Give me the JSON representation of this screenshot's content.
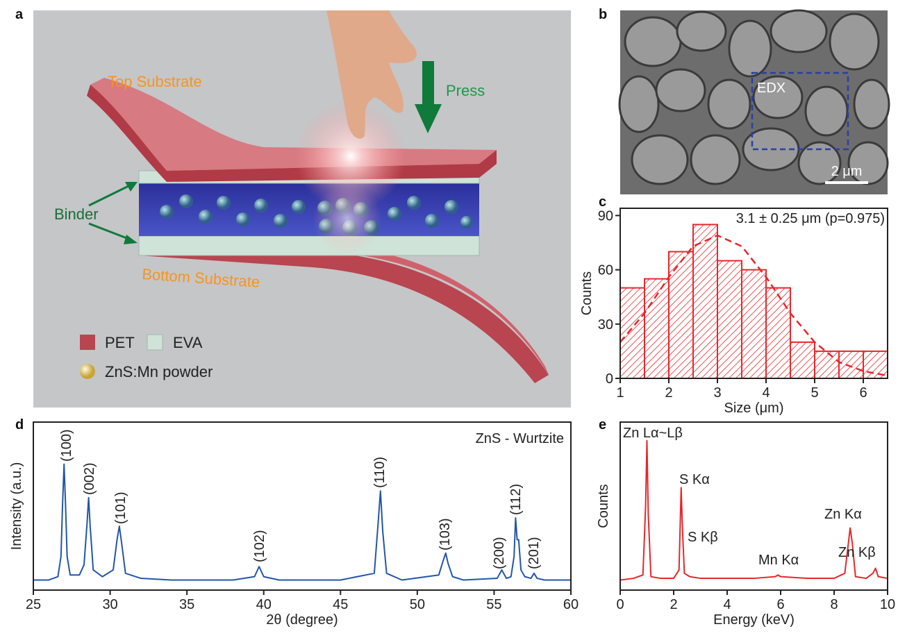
{
  "panel_labels": [
    "a",
    "b",
    "c",
    "d",
    "e"
  ],
  "illustration": {
    "top_substrate": "Top Substrate",
    "press": "Press",
    "binder": "Binder",
    "bottom_substrate": "Bottom Substrate",
    "legend": [
      "PET",
      "EVA",
      "ZnS:Mn powder"
    ]
  },
  "sem": {
    "box_label": "EDX",
    "scale_bar": "2 μm"
  },
  "chart_data": [
    {
      "type": "histogram",
      "annotation": "3.1 ± 0.25 μm (p=0.975)",
      "x_label": "Size (μm)",
      "y_label": "Counts",
      "bins": [
        1,
        1.5,
        2,
        2.5,
        3,
        3.5,
        4,
        4.5,
        5,
        5.5,
        6,
        6.5
      ],
      "counts": [
        50,
        55,
        70,
        85,
        65,
        60,
        50,
        20,
        15,
        15,
        15
      ],
      "color": "#e8262a",
      "fit": {
        "x": [
          1,
          1.5,
          2,
          2.5,
          3,
          3.5,
          4,
          4.5,
          5,
          5.5,
          6,
          6.5
        ],
        "values": [
          20,
          36,
          56,
          73,
          79,
          73,
          56,
          36,
          20,
          9,
          4,
          1.5
        ]
      },
      "xlim": [
        1,
        6.5
      ],
      "ylim": [
        0,
        94
      ],
      "xticks": [
        1,
        2,
        3,
        4,
        5,
        6
      ],
      "yticks": [
        0,
        30,
        60,
        90
      ]
    },
    {
      "type": "line",
      "annotation": "ZnS - Wurtzite",
      "x_label": "2θ (degree)",
      "y_label": "Intensity (a.u.)",
      "x": [
        25,
        26,
        26.6,
        26.8,
        26.9,
        27.0,
        27.1,
        27.2,
        27.4,
        28.0,
        28.3,
        28.5,
        28.6,
        28.7,
        28.9,
        29.5,
        30.2,
        30.45,
        30.6,
        30.75,
        31.0,
        32,
        34,
        36,
        38,
        39.4,
        39.7,
        40.0,
        41,
        43,
        45,
        47.2,
        47.45,
        47.6,
        47.75,
        48.0,
        49,
        51.4,
        51.7,
        51.85,
        52.0,
        52.3,
        53,
        55.2,
        55.5,
        55.8,
        56.1,
        56.3,
        56.4,
        56.5,
        56.6,
        56.75,
        57.0,
        57.4,
        57.6,
        57.8,
        58.3,
        60
      ],
      "values": [
        6,
        6,
        8,
        20,
        50,
        75,
        50,
        20,
        9,
        9,
        15,
        40,
        55,
        38,
        12,
        8,
        12,
        30,
        38,
        28,
        10,
        7,
        6,
        6,
        6,
        8,
        14,
        8,
        6,
        6,
        6,
        10,
        40,
        59,
        35,
        10,
        6,
        9,
        18,
        22,
        16,
        8,
        6,
        7,
        12,
        7,
        8,
        20,
        43,
        30,
        30,
        12,
        8,
        7,
        10,
        7,
        6,
        6
      ],
      "color": "#2355a8",
      "peak_labels": [
        "(100)",
        "(002)",
        "(101)",
        "(102)",
        "(110)",
        "(103)",
        "(200)",
        "(112)",
        "(201)"
      ],
      "xlim": [
        25,
        60
      ],
      "ylim": [
        0,
        100
      ],
      "xticks": [
        25,
        30,
        35,
        40,
        45,
        50,
        55,
        60
      ]
    },
    {
      "type": "line",
      "x_label": "Energy (keV)",
      "y_label": "Counts",
      "x": [
        0,
        0.5,
        0.85,
        0.95,
        1.0,
        1.05,
        1.15,
        1.5,
        2.0,
        2.2,
        2.28,
        2.32,
        2.4,
        2.6,
        3,
        4,
        5,
        5.8,
        5.9,
        6.0,
        7,
        8,
        8.4,
        8.55,
        8.6,
        8.68,
        8.8,
        9.2,
        9.45,
        9.55,
        9.65,
        10
      ],
      "values": [
        6,
        7,
        9,
        50,
        89,
        45,
        8,
        7,
        7,
        12,
        61,
        40,
        10,
        8,
        7,
        7,
        7,
        8,
        9,
        8,
        7,
        7,
        10,
        30,
        37,
        28,
        8,
        7,
        10,
        13,
        8,
        7
      ],
      "color": "#e8262a",
      "peak_labels": [
        "Zn Lα~Lβ",
        "S Kα",
        "S Kβ",
        "Mn Kα",
        "Zn Kα",
        "Zn Kβ"
      ],
      "xlim": [
        0,
        10
      ],
      "ylim": [
        0,
        100
      ],
      "xticks": [
        0,
        2,
        4,
        6,
        8,
        10
      ]
    }
  ]
}
